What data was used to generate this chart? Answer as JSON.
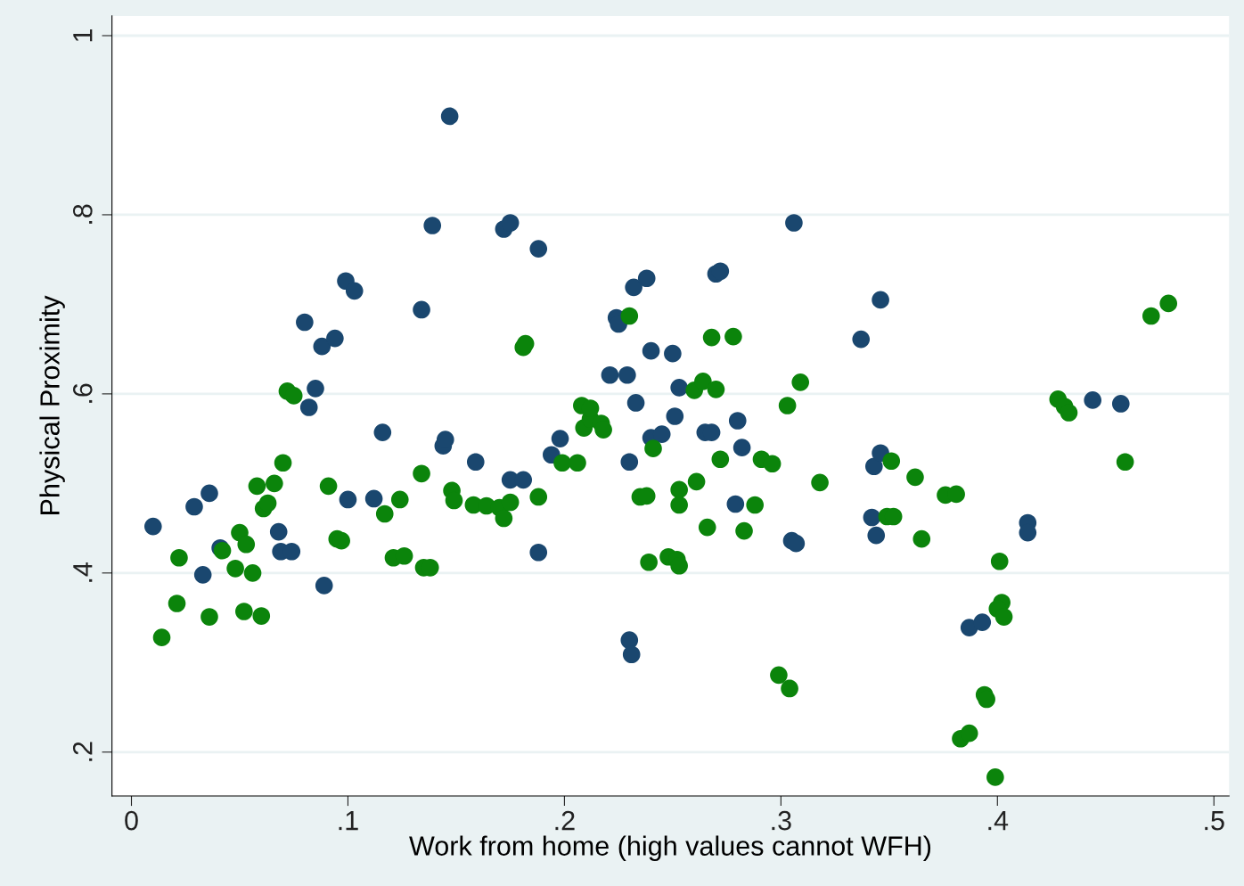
{
  "chart_data": {
    "type": "scatter",
    "xlabel": "Work from home (high values cannot WFH)",
    "ylabel": "Physical Proximity",
    "xlim": [
      -0.009,
      0.507
    ],
    "ylim": [
      0.151,
      1.022
    ],
    "xticks": [
      0,
      {
        "value": 0.1,
        "label": ".1"
      },
      {
        "value": 0.2,
        "label": ".2"
      },
      {
        "value": 0.3,
        "label": ".3"
      },
      {
        "value": 0.4,
        "label": ".4"
      },
      {
        "value": 0.5,
        "label": ".5"
      }
    ],
    "yticks": [
      {
        "value": 0.2,
        "label": ".2"
      },
      {
        "value": 0.4,
        "label": ".4"
      },
      {
        "value": 0.6,
        "label": ".6"
      },
      {
        "value": 0.8,
        "label": ".8"
      },
      1
    ],
    "grid": "y",
    "marker": "circle",
    "legend": false,
    "series": [
      {
        "color": "#1a476f",
        "x": [
          0.01,
          0.029,
          0.036,
          0.033,
          0.041,
          0.068,
          0.069,
          0.074,
          0.08,
          0.082,
          0.085,
          0.088,
          0.089,
          0.094,
          0.099,
          0.103,
          0.1,
          0.112,
          0.116,
          0.134,
          0.139,
          0.144,
          0.145,
          0.147,
          0.159,
          0.172,
          0.175,
          0.175,
          0.181,
          0.188,
          0.188,
          0.194,
          0.198,
          0.221,
          0.224,
          0.225,
          0.229,
          0.23,
          0.23,
          0.231,
          0.232,
          0.233,
          0.238,
          0.24,
          0.24,
          0.245,
          0.25,
          0.251,
          0.253,
          0.265,
          0.268,
          0.27,
          0.272,
          0.28,
          0.282,
          0.279,
          0.306,
          0.305,
          0.307,
          0.337,
          0.346,
          0.342,
          0.344,
          0.343,
          0.346,
          0.387,
          0.393,
          0.414,
          0.414,
          0.444,
          0.457
        ],
        "values": [
          0.452,
          0.474,
          0.489,
          0.398,
          0.428,
          0.446,
          0.424,
          0.424,
          0.68,
          0.585,
          0.606,
          0.653,
          0.386,
          0.662,
          0.726,
          0.715,
          0.482,
          0.483,
          0.557,
          0.694,
          0.788,
          0.542,
          0.549,
          0.91,
          0.524,
          0.784,
          0.791,
          0.504,
          0.504,
          0.423,
          0.762,
          0.532,
          0.55,
          0.621,
          0.685,
          0.678,
          0.621,
          0.524,
          0.325,
          0.309,
          0.719,
          0.59,
          0.729,
          0.551,
          0.648,
          0.555,
          0.645,
          0.575,
          0.607,
          0.557,
          0.557,
          0.734,
          0.737,
          0.57,
          0.54,
          0.477,
          0.791,
          0.436,
          0.433,
          0.661,
          0.705,
          0.462,
          0.442,
          0.519,
          0.534,
          0.339,
          0.345,
          0.456,
          0.445,
          0.593,
          0.589
        ]
      },
      {
        "color": "#0b840b",
        "x": [
          0.014,
          0.021,
          0.022,
          0.036,
          0.042,
          0.048,
          0.05,
          0.052,
          0.053,
          0.056,
          0.058,
          0.06,
          0.061,
          0.063,
          0.066,
          0.07,
          0.072,
          0.075,
          0.091,
          0.095,
          0.097,
          0.117,
          0.121,
          0.124,
          0.126,
          0.134,
          0.135,
          0.138,
          0.148,
          0.149,
          0.158,
          0.164,
          0.17,
          0.172,
          0.175,
          0.181,
          0.182,
          0.188,
          0.199,
          0.206,
          0.208,
          0.209,
          0.212,
          0.212,
          0.217,
          0.218,
          0.23,
          0.235,
          0.238,
          0.239,
          0.241,
          0.248,
          0.252,
          0.253,
          0.253,
          0.253,
          0.261,
          0.266,
          0.26,
          0.264,
          0.27,
          0.268,
          0.278,
          0.272,
          0.283,
          0.288,
          0.291,
          0.296,
          0.299,
          0.304,
          0.303,
          0.309,
          0.318,
          0.351,
          0.349,
          0.352,
          0.362,
          0.365,
          0.376,
          0.381,
          0.383,
          0.387,
          0.394,
          0.395,
          0.399,
          0.401,
          0.402,
          0.4,
          0.403,
          0.428,
          0.431,
          0.433,
          0.459,
          0.471,
          0.479
        ],
        "values": [
          0.328,
          0.366,
          0.417,
          0.351,
          0.425,
          0.405,
          0.445,
          0.357,
          0.432,
          0.4,
          0.497,
          0.352,
          0.472,
          0.478,
          0.5,
          0.523,
          0.603,
          0.598,
          0.497,
          0.438,
          0.436,
          0.466,
          0.417,
          0.482,
          0.419,
          0.511,
          0.406,
          0.406,
          0.492,
          0.481,
          0.476,
          0.475,
          0.473,
          0.461,
          0.479,
          0.652,
          0.656,
          0.485,
          0.523,
          0.523,
          0.587,
          0.562,
          0.572,
          0.584,
          0.567,
          0.56,
          0.687,
          0.485,
          0.486,
          0.412,
          0.539,
          0.418,
          0.415,
          0.493,
          0.476,
          0.408,
          0.502,
          0.451,
          0.604,
          0.614,
          0.605,
          0.663,
          0.664,
          0.527,
          0.447,
          0.476,
          0.527,
          0.522,
          0.286,
          0.271,
          0.587,
          0.613,
          0.501,
          0.525,
          0.463,
          0.463,
          0.507,
          0.438,
          0.487,
          0.488,
          0.215,
          0.221,
          0.264,
          0.259,
          0.172,
          0.413,
          0.367,
          0.36,
          0.351,
          0.594,
          0.586,
          0.579,
          0.524,
          0.687,
          0.701
        ]
      }
    ]
  }
}
